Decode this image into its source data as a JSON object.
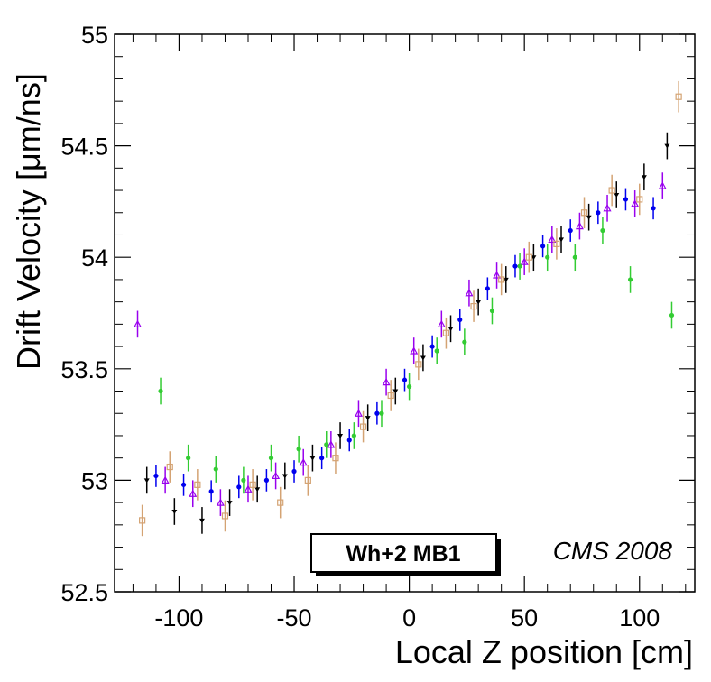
{
  "chart_data": {
    "type": "scatter",
    "title": "",
    "xlabel": "Local Z position [cm]",
    "ylabel": "Drift Velocity [μm/ns]",
    "xlim": [
      -128,
      124
    ],
    "ylim": [
      52.5,
      55
    ],
    "xticks": [
      -100,
      -50,
      0,
      50,
      100
    ],
    "xtick_labels": [
      "-100",
      "-50",
      "0",
      "50",
      "100"
    ],
    "yticks": [
      52.5,
      53,
      53.5,
      54,
      54.5,
      55
    ],
    "ytick_labels": [
      "52.5",
      "53",
      "53.5",
      "54",
      "54.5",
      "55"
    ],
    "legend_label": "Wh+2 MB1",
    "annotation": "CMS 2008",
    "series": [
      {
        "name": "black",
        "color": "#000000",
        "marker": "triangle-down",
        "x": [
          -114,
          -102,
          -90,
          -78,
          -66,
          -54,
          -42,
          -30,
          -18,
          -6,
          6,
          18,
          30,
          42,
          54,
          66,
          78,
          90,
          102,
          112
        ],
        "y": [
          53.0,
          52.86,
          52.82,
          52.9,
          52.96,
          53.02,
          53.1,
          53.2,
          53.28,
          53.4,
          53.55,
          53.68,
          53.8,
          53.9,
          54.0,
          54.08,
          54.18,
          54.28,
          54.36,
          54.5
        ],
        "err": 0.06
      },
      {
        "name": "blue",
        "color": "#0000ee",
        "marker": "circle",
        "x": [
          -110,
          -98,
          -86,
          -74,
          -62,
          -50,
          -38,
          -26,
          -14,
          -2,
          10,
          22,
          34,
          46,
          58,
          70,
          82,
          94,
          106
        ],
        "y": [
          53.02,
          52.98,
          52.95,
          52.97,
          53.0,
          53.04,
          53.1,
          53.18,
          53.3,
          53.45,
          53.6,
          53.72,
          53.86,
          53.96,
          54.05,
          54.12,
          54.2,
          54.26,
          54.22
        ],
        "err": 0.05
      },
      {
        "name": "violet",
        "color": "#9900ee",
        "marker": "triangle-open",
        "x": [
          -118,
          -106,
          -94,
          -82,
          -70,
          -58,
          -46,
          -34,
          -22,
          -10,
          2,
          14,
          26,
          38,
          50,
          62,
          74,
          86,
          98,
          110
        ],
        "y": [
          53.7,
          53.0,
          52.94,
          52.9,
          52.96,
          53.02,
          53.08,
          53.16,
          53.3,
          53.44,
          53.58,
          53.7,
          53.84,
          53.92,
          53.98,
          54.08,
          54.14,
          54.22,
          54.24,
          54.32
        ],
        "err": 0.06
      },
      {
        "name": "green",
        "color": "#33cc33",
        "marker": "circle",
        "x": [
          -108,
          -96,
          -84,
          -72,
          -60,
          -48,
          -36,
          -24,
          -12,
          0,
          12,
          24,
          36,
          48,
          60,
          72,
          84,
          96,
          114
        ],
        "y": [
          53.4,
          53.1,
          53.05,
          53.0,
          53.1,
          53.14,
          53.16,
          53.2,
          53.3,
          53.42,
          53.58,
          53.62,
          53.76,
          53.96,
          54.0,
          54.0,
          54.12,
          53.9,
          53.74
        ],
        "err": 0.06
      },
      {
        "name": "tan",
        "color": "#d4a373",
        "marker": "square-open",
        "x": [
          -116,
          -104,
          -92,
          -80,
          -68,
          -56,
          -44,
          -32,
          -20,
          -8,
          4,
          16,
          28,
          40,
          52,
          64,
          76,
          88,
          100,
          117
        ],
        "y": [
          52.82,
          53.06,
          52.98,
          52.84,
          52.98,
          52.9,
          53.0,
          53.1,
          53.24,
          53.38,
          53.52,
          53.66,
          53.78,
          53.9,
          54.0,
          54.06,
          54.2,
          54.3,
          54.26,
          54.72
        ],
        "err": 0.07
      }
    ]
  }
}
